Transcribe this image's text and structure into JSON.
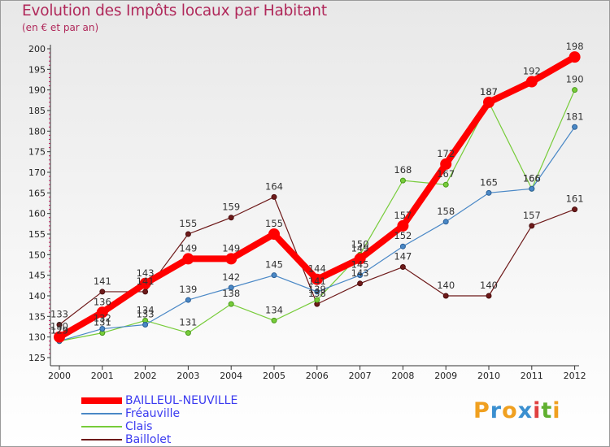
{
  "chart_data": {
    "type": "line",
    "title": "Evolution des Impôts locaux par Habitant",
    "subtitle": "(en € et par an)",
    "xlabel": "",
    "ylabel": "",
    "x": [
      "2000",
      "2001",
      "2002",
      "2003",
      "2004",
      "2005",
      "2006",
      "2007",
      "2008",
      "2009",
      "2010",
      "2011",
      "2012"
    ],
    "ylim": [
      125,
      200
    ],
    "yticks": [
      125,
      130,
      135,
      140,
      145,
      150,
      155,
      160,
      165,
      170,
      175,
      180,
      185,
      190,
      195,
      200
    ],
    "grid": false,
    "legend_position": "bottom-left",
    "series": [
      {
        "name": "BAILLEUL-NEUVILLE",
        "color": "#ff0000",
        "values": [
          130,
          136,
          143,
          149,
          149,
          155,
          144,
          149,
          157,
          172,
          187,
          192,
          198
        ]
      },
      {
        "name": "Fréauville",
        "color": "#4a88c6",
        "values": [
          129,
          132,
          133,
          139,
          142,
          145,
          141,
          145,
          152,
          158,
          165,
          166,
          181
        ]
      },
      {
        "name": "Clais",
        "color": "#77cc3a",
        "values": [
          129,
          131,
          134,
          131,
          138,
          134,
          139,
          150,
          168,
          167,
          187,
          166,
          190
        ]
      },
      {
        "name": "Baillolet",
        "color": "#6e1a1a",
        "values": [
          133,
          141,
          141,
          155,
          159,
          164,
          138,
          143,
          147,
          140,
          140,
          157,
          161
        ]
      }
    ]
  },
  "logo": {
    "text": "Proxiti",
    "letters": [
      "P",
      "r",
      "o",
      "x",
      "i",
      "t",
      "i"
    ]
  }
}
